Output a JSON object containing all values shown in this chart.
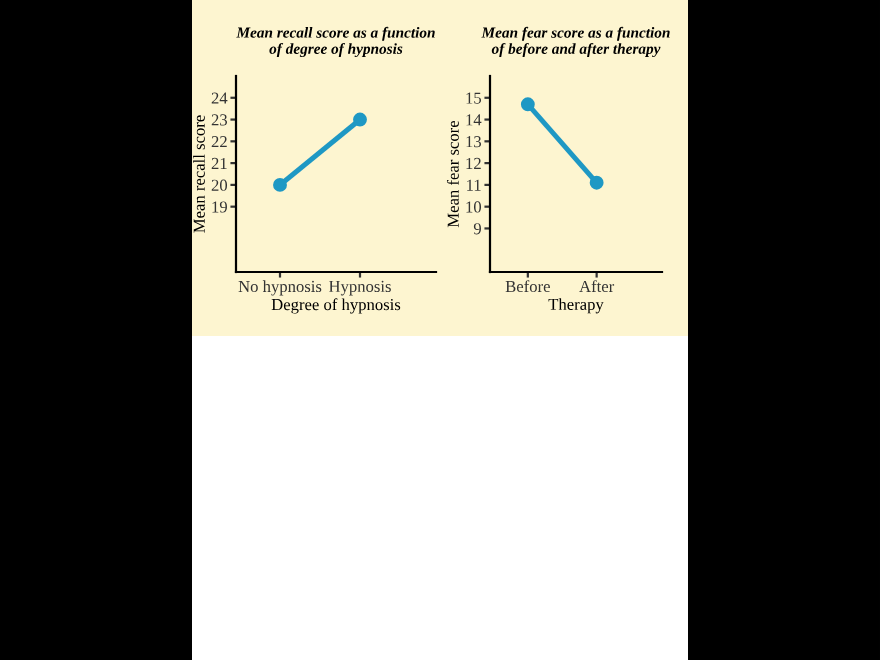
{
  "chart_data": [
    {
      "type": "line",
      "title": "Mean recall score as a function\nof degree of hypnosis",
      "xlabel": "Degree of hypnosis",
      "ylabel": "Mean recall score",
      "categories": [
        "No hypnosis",
        "Hypnosis"
      ],
      "series": [
        {
          "color": "#1e98c4",
          "values": [
            20,
            23
          ]
        }
      ],
      "ylim": [
        16,
        25
      ],
      "yticks": [
        19,
        20,
        21,
        22,
        23,
        24
      ],
      "marker": "circle",
      "line_style": "solid",
      "grid": false,
      "legend": false
    },
    {
      "type": "line",
      "title": "Mean fear score as a function\nof before and after therapy",
      "xlabel": "Therapy",
      "ylabel": "Mean fear score",
      "categories": [
        "Before",
        "After"
      ],
      "series": [
        {
          "color": "#1e98c4",
          "values": [
            14.7,
            11.1
          ]
        }
      ],
      "ylim": [
        7,
        16
      ],
      "yticks": [
        9,
        10,
        11,
        12,
        13,
        14,
        15
      ],
      "marker": "circle",
      "line_style": "solid",
      "grid": false,
      "legend": false
    }
  ]
}
